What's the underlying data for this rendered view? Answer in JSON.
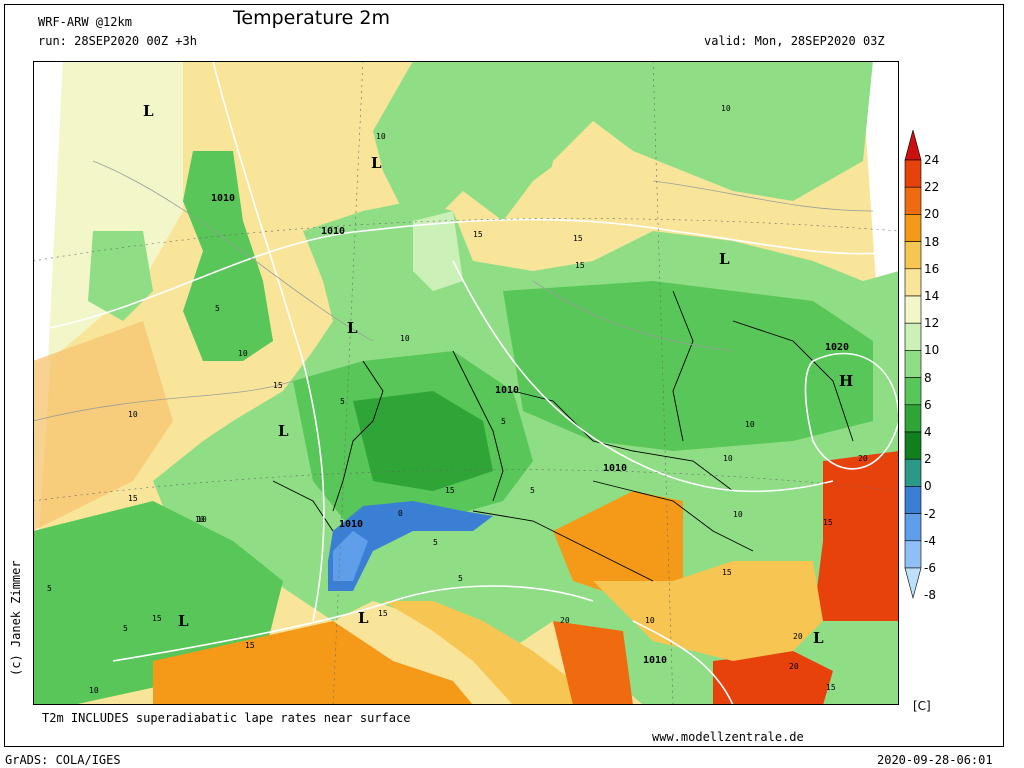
{
  "header": {
    "model": "WRF-ARW @12km",
    "run": "run: 28SEP2020 00Z +3h",
    "title": "Temperature 2m",
    "valid": "valid: Mon, 28SEP2020 03Z"
  },
  "footer": {
    "note": "T2m INCLUDES superadiabatic lape rates near surface",
    "website": "www.modellzentrale.de",
    "software": "GrADS: COLA/IGES",
    "timestamp": "2020-09-28-06:01",
    "credit": "(c) Janek Zimmer"
  },
  "colorbar": {
    "unit": "[C]",
    "levels": [
      "24",
      "22",
      "20",
      "18",
      "16",
      "14",
      "12",
      "10",
      "8",
      "6",
      "4",
      "2",
      "0",
      "-2",
      "-4",
      "-6",
      "-8"
    ],
    "colors": [
      "#cc1010",
      "#e8420c",
      "#f06a10",
      "#f49a18",
      "#f7c552",
      "#f8e59a",
      "#f2f6c8",
      "#cbf0b8",
      "#8fde86",
      "#58c658",
      "#2ea536",
      "#127f1e",
      "#2a9a86",
      "#3b7fd4",
      "#5f9ee8",
      "#8fbff5",
      "#bfe0fb"
    ]
  },
  "map": {
    "land_color": "#8fde86",
    "sea_color": "#f8e59a",
    "pressure_labels": [
      {
        "text": "1010",
        "kind": "isobar"
      },
      {
        "text": "1010",
        "kind": "isobar"
      },
      {
        "text": "1010",
        "kind": "isobar"
      },
      {
        "text": "1010",
        "kind": "isobar"
      },
      {
        "text": "1010",
        "kind": "isobar"
      },
      {
        "text": "1010",
        "kind": "isobar"
      },
      {
        "text": "1020",
        "kind": "isobar"
      }
    ],
    "centers": [
      "L",
      "L",
      "L",
      "L",
      "L",
      "L",
      "L",
      "L",
      "H"
    ],
    "contour_labels": [
      "10",
      "15",
      "5",
      "10",
      "5",
      "10",
      "15",
      "10",
      "15",
      "10",
      "5",
      "15",
      "10",
      "20",
      "15",
      "15",
      "10",
      "5",
      "15",
      "5",
      "10",
      "20",
      "15",
      "15",
      "10",
      "0",
      "5",
      "15",
      "10",
      "5",
      "20",
      "15",
      "10",
      "20",
      "15",
      "10",
      "5"
    ]
  }
}
